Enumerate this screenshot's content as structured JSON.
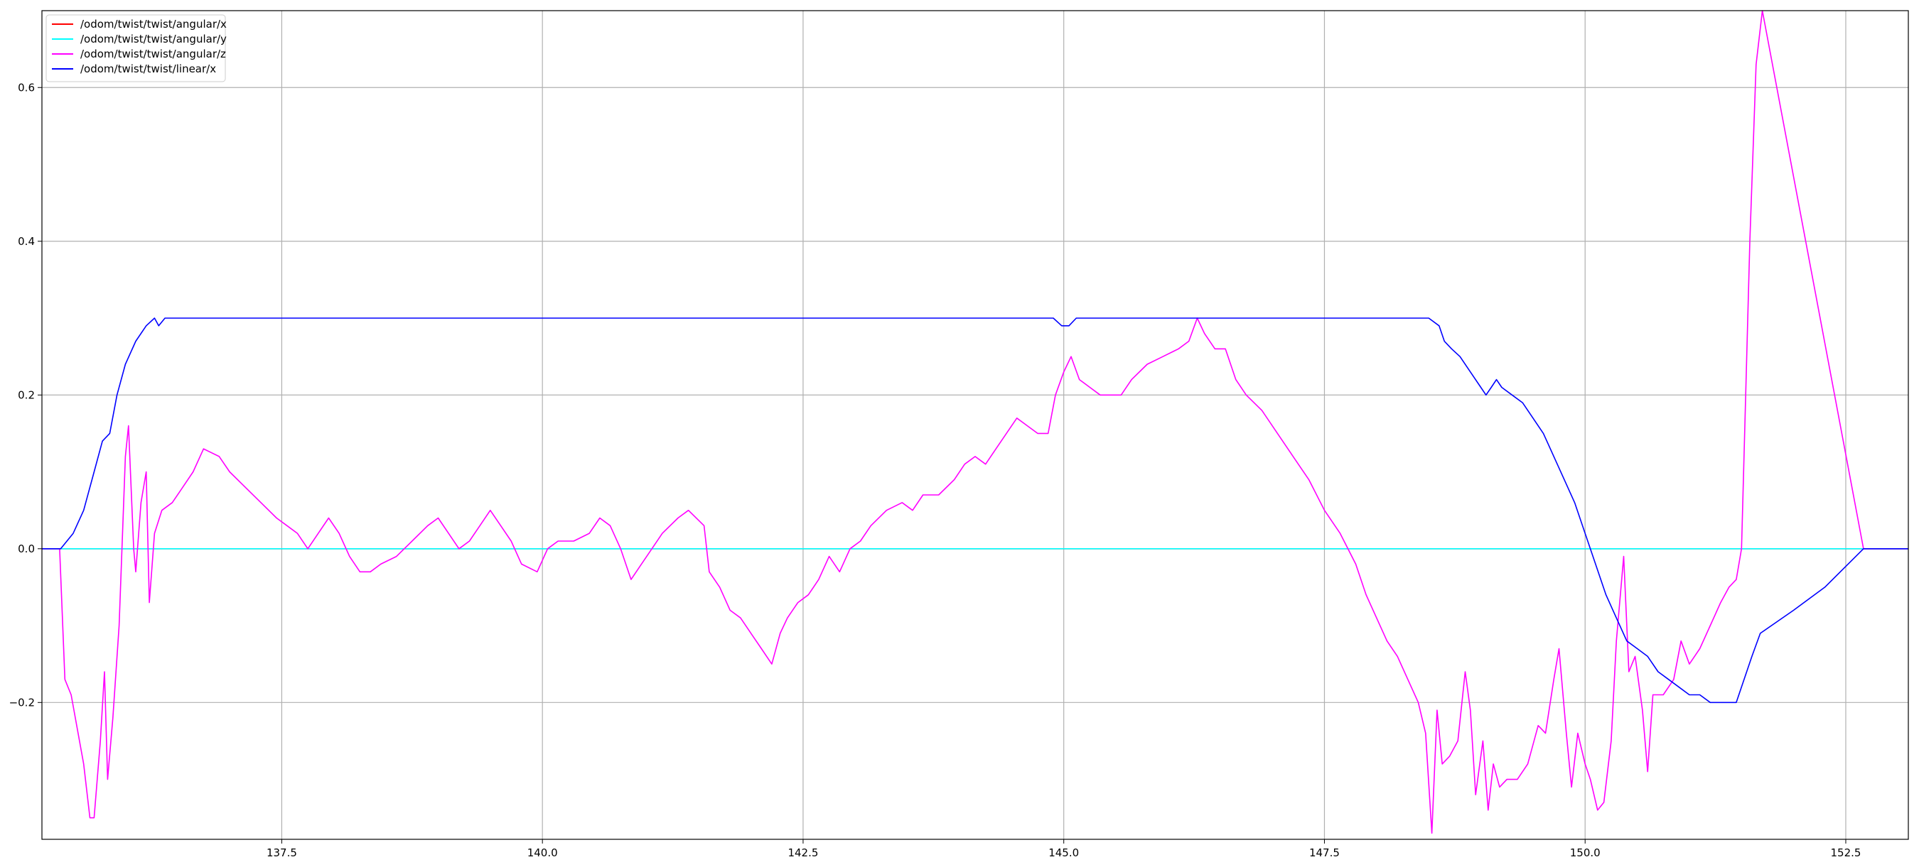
{
  "chart_data": {
    "type": "line",
    "title": "",
    "xlabel": "",
    "ylabel": "",
    "xlim": [
      135.2,
      153.1
    ],
    "ylim": [
      -0.378,
      0.7
    ],
    "grid": true,
    "legend_placement": "top-left",
    "x_ticks": [
      {
        "value": 137.5,
        "label": "137.5"
      },
      {
        "value": 140.0,
        "label": "140.0"
      },
      {
        "value": 142.5,
        "label": "142.5"
      },
      {
        "value": 145.0,
        "label": "145.0"
      },
      {
        "value": 147.5,
        "label": "147.5"
      },
      {
        "value": 150.0,
        "label": "150.0"
      },
      {
        "value": 152.5,
        "label": "152.5"
      }
    ],
    "y_ticks": [
      {
        "value": -0.2,
        "label": "−0.2"
      },
      {
        "value": 0.0,
        "label": "0.0"
      },
      {
        "value": 0.2,
        "label": "0.2"
      },
      {
        "value": 0.4,
        "label": "0.4"
      },
      {
        "value": 0.6,
        "label": "0.6"
      }
    ],
    "series": [
      {
        "name": "/odom/twist/twist/angular/x",
        "color": "#ff0000",
        "points": [
          [
            135.2,
            0.0
          ],
          [
            153.1,
            0.0
          ]
        ]
      },
      {
        "name": "/odom/twist/twist/angular/y",
        "color": "#00ffff",
        "points": [
          [
            135.2,
            0.0
          ],
          [
            153.1,
            0.0
          ]
        ]
      },
      {
        "name": "/odom/twist/twist/angular/z",
        "color": "#ff00ff",
        "points": [
          [
            135.2,
            0.0
          ],
          [
            135.37,
            0.0
          ],
          [
            135.42,
            -0.17
          ],
          [
            135.48,
            -0.19
          ],
          [
            135.6,
            -0.28
          ],
          [
            135.66,
            -0.35
          ],
          [
            135.7,
            -0.35
          ],
          [
            135.76,
            -0.25
          ],
          [
            135.8,
            -0.16
          ],
          [
            135.83,
            -0.3
          ],
          [
            135.88,
            -0.22
          ],
          [
            135.94,
            -0.1
          ],
          [
            136.0,
            0.12
          ],
          [
            136.03,
            0.16
          ],
          [
            136.08,
            0.0
          ],
          [
            136.1,
            -0.03
          ],
          [
            136.15,
            0.06
          ],
          [
            136.2,
            0.1
          ],
          [
            136.23,
            -0.07
          ],
          [
            136.28,
            0.02
          ],
          [
            136.35,
            0.05
          ],
          [
            136.45,
            0.06
          ],
          [
            136.55,
            0.08
          ],
          [
            136.65,
            0.1
          ],
          [
            136.75,
            0.13
          ],
          [
            136.9,
            0.12
          ],
          [
            137.0,
            0.1
          ],
          [
            137.15,
            0.08
          ],
          [
            137.3,
            0.06
          ],
          [
            137.45,
            0.04
          ],
          [
            137.55,
            0.03
          ],
          [
            137.65,
            0.02
          ],
          [
            137.75,
            0.0
          ],
          [
            137.85,
            0.02
          ],
          [
            137.95,
            0.04
          ],
          [
            138.05,
            0.02
          ],
          [
            138.15,
            -0.01
          ],
          [
            138.25,
            -0.03
          ],
          [
            138.35,
            -0.03
          ],
          [
            138.45,
            -0.02
          ],
          [
            138.6,
            -0.01
          ],
          [
            138.75,
            0.01
          ],
          [
            138.9,
            0.03
          ],
          [
            139.0,
            0.04
          ],
          [
            139.1,
            0.02
          ],
          [
            139.2,
            0.0
          ],
          [
            139.3,
            0.01
          ],
          [
            139.4,
            0.03
          ],
          [
            139.5,
            0.05
          ],
          [
            139.6,
            0.03
          ],
          [
            139.7,
            0.01
          ],
          [
            139.8,
            -0.02
          ],
          [
            139.95,
            -0.03
          ],
          [
            140.05,
            0.0
          ],
          [
            140.15,
            0.01
          ],
          [
            140.3,
            0.01
          ],
          [
            140.45,
            0.02
          ],
          [
            140.55,
            0.04
          ],
          [
            140.65,
            0.03
          ],
          [
            140.75,
            0.0
          ],
          [
            140.85,
            -0.04
          ],
          [
            140.95,
            -0.02
          ],
          [
            141.05,
            0.0
          ],
          [
            141.15,
            0.02
          ],
          [
            141.3,
            0.04
          ],
          [
            141.4,
            0.05
          ],
          [
            141.55,
            0.03
          ],
          [
            141.6,
            -0.03
          ],
          [
            141.7,
            -0.05
          ],
          [
            141.8,
            -0.08
          ],
          [
            141.9,
            -0.09
          ],
          [
            142.0,
            -0.11
          ],
          [
            142.1,
            -0.13
          ],
          [
            142.2,
            -0.15
          ],
          [
            142.28,
            -0.11
          ],
          [
            142.35,
            -0.09
          ],
          [
            142.45,
            -0.07
          ],
          [
            142.55,
            -0.06
          ],
          [
            142.65,
            -0.04
          ],
          [
            142.75,
            -0.01
          ],
          [
            142.85,
            -0.03
          ],
          [
            142.95,
            0.0
          ],
          [
            143.05,
            0.01
          ],
          [
            143.15,
            0.03
          ],
          [
            143.3,
            0.05
          ],
          [
            143.45,
            0.06
          ],
          [
            143.55,
            0.05
          ],
          [
            143.65,
            0.07
          ],
          [
            143.8,
            0.07
          ],
          [
            143.95,
            0.09
          ],
          [
            144.05,
            0.11
          ],
          [
            144.15,
            0.12
          ],
          [
            144.25,
            0.11
          ],
          [
            144.35,
            0.13
          ],
          [
            144.45,
            0.15
          ],
          [
            144.55,
            0.17
          ],
          [
            144.65,
            0.16
          ],
          [
            144.75,
            0.15
          ],
          [
            144.85,
            0.15
          ],
          [
            144.92,
            0.2
          ],
          [
            145.0,
            0.23
          ],
          [
            145.07,
            0.25
          ],
          [
            145.15,
            0.22
          ],
          [
            145.25,
            0.21
          ],
          [
            145.35,
            0.2
          ],
          [
            145.45,
            0.2
          ],
          [
            145.55,
            0.2
          ],
          [
            145.65,
            0.22
          ],
          [
            145.8,
            0.24
          ],
          [
            145.95,
            0.25
          ],
          [
            146.1,
            0.26
          ],
          [
            146.2,
            0.27
          ],
          [
            146.28,
            0.3
          ],
          [
            146.35,
            0.28
          ],
          [
            146.45,
            0.26
          ],
          [
            146.55,
            0.26
          ],
          [
            146.65,
            0.22
          ],
          [
            146.75,
            0.2
          ],
          [
            146.9,
            0.18
          ],
          [
            147.05,
            0.15
          ],
          [
            147.2,
            0.12
          ],
          [
            147.35,
            0.09
          ],
          [
            147.5,
            0.05
          ],
          [
            147.65,
            0.02
          ],
          [
            147.8,
            -0.02
          ],
          [
            147.9,
            -0.06
          ],
          [
            148.0,
            -0.09
          ],
          [
            148.1,
            -0.12
          ],
          [
            148.2,
            -0.14
          ],
          [
            148.3,
            -0.17
          ],
          [
            148.4,
            -0.2
          ],
          [
            148.47,
            -0.24
          ],
          [
            148.53,
            -0.37
          ],
          [
            148.58,
            -0.21
          ],
          [
            148.63,
            -0.28
          ],
          [
            148.7,
            -0.27
          ],
          [
            148.78,
            -0.25
          ],
          [
            148.85,
            -0.16
          ],
          [
            148.9,
            -0.21
          ],
          [
            148.95,
            -0.32
          ],
          [
            149.02,
            -0.25
          ],
          [
            149.07,
            -0.34
          ],
          [
            149.12,
            -0.28
          ],
          [
            149.18,
            -0.31
          ],
          [
            149.25,
            -0.3
          ],
          [
            149.35,
            -0.3
          ],
          [
            149.45,
            -0.28
          ],
          [
            149.55,
            -0.23
          ],
          [
            149.62,
            -0.24
          ],
          [
            149.7,
            -0.17
          ],
          [
            149.75,
            -0.13
          ],
          [
            149.82,
            -0.24
          ],
          [
            149.87,
            -0.31
          ],
          [
            149.93,
            -0.24
          ],
          [
            150.0,
            -0.28
          ],
          [
            150.05,
            -0.3
          ],
          [
            150.12,
            -0.34
          ],
          [
            150.18,
            -0.33
          ],
          [
            150.25,
            -0.25
          ],
          [
            150.3,
            -0.12
          ],
          [
            150.37,
            -0.01
          ],
          [
            150.42,
            -0.16
          ],
          [
            150.48,
            -0.14
          ],
          [
            150.55,
            -0.21
          ],
          [
            150.6,
            -0.29
          ],
          [
            150.65,
            -0.19
          ],
          [
            150.75,
            -0.19
          ],
          [
            150.85,
            -0.17
          ],
          [
            150.92,
            -0.12
          ],
          [
            151.0,
            -0.15
          ],
          [
            151.1,
            -0.13
          ],
          [
            151.2,
            -0.1
          ],
          [
            151.3,
            -0.07
          ],
          [
            151.38,
            -0.05
          ],
          [
            151.45,
            -0.04
          ],
          [
            151.5,
            0.0
          ],
          [
            151.58,
            0.4
          ],
          [
            151.64,
            0.63
          ],
          [
            151.7,
            0.7
          ],
          [
            152.67,
            0.0
          ],
          [
            153.1,
            0.0
          ]
        ]
      },
      {
        "name": "/odom/twist/twist/linear/x",
        "color": "#0000ff",
        "points": [
          [
            135.2,
            0.0
          ],
          [
            135.38,
            0.0
          ],
          [
            135.5,
            0.02
          ],
          [
            135.6,
            0.05
          ],
          [
            135.7,
            0.1
          ],
          [
            135.78,
            0.14
          ],
          [
            135.85,
            0.15
          ],
          [
            135.92,
            0.2
          ],
          [
            136.0,
            0.24
          ],
          [
            136.1,
            0.27
          ],
          [
            136.2,
            0.29
          ],
          [
            136.28,
            0.3
          ],
          [
            136.32,
            0.29
          ],
          [
            136.38,
            0.3
          ],
          [
            136.6,
            0.3
          ],
          [
            137.5,
            0.3
          ],
          [
            140.0,
            0.3
          ],
          [
            142.5,
            0.3
          ],
          [
            144.9,
            0.3
          ],
          [
            144.98,
            0.29
          ],
          [
            145.05,
            0.29
          ],
          [
            145.12,
            0.3
          ],
          [
            146.0,
            0.3
          ],
          [
            147.5,
            0.3
          ],
          [
            148.5,
            0.3
          ],
          [
            148.6,
            0.29
          ],
          [
            148.65,
            0.27
          ],
          [
            148.72,
            0.26
          ],
          [
            148.8,
            0.25
          ],
          [
            148.9,
            0.23
          ],
          [
            149.0,
            0.21
          ],
          [
            149.05,
            0.2
          ],
          [
            149.1,
            0.21
          ],
          [
            149.15,
            0.22
          ],
          [
            149.2,
            0.21
          ],
          [
            149.3,
            0.2
          ],
          [
            149.4,
            0.19
          ],
          [
            149.5,
            0.17
          ],
          [
            149.6,
            0.15
          ],
          [
            149.7,
            0.12
          ],
          [
            149.8,
            0.09
          ],
          [
            149.9,
            0.06
          ],
          [
            150.0,
            0.02
          ],
          [
            150.1,
            -0.02
          ],
          [
            150.2,
            -0.06
          ],
          [
            150.3,
            -0.09
          ],
          [
            150.4,
            -0.12
          ],
          [
            150.5,
            -0.13
          ],
          [
            150.6,
            -0.14
          ],
          [
            150.7,
            -0.16
          ],
          [
            150.8,
            -0.17
          ],
          [
            150.9,
            -0.18
          ],
          [
            151.0,
            -0.19
          ],
          [
            151.1,
            -0.19
          ],
          [
            151.2,
            -0.2
          ],
          [
            151.3,
            -0.2
          ],
          [
            151.45,
            -0.2
          ],
          [
            151.6,
            -0.14
          ],
          [
            151.68,
            -0.11
          ],
          [
            152.0,
            -0.08
          ],
          [
            152.3,
            -0.05
          ],
          [
            152.67,
            0.0
          ],
          [
            153.1,
            0.0
          ]
        ]
      }
    ]
  }
}
